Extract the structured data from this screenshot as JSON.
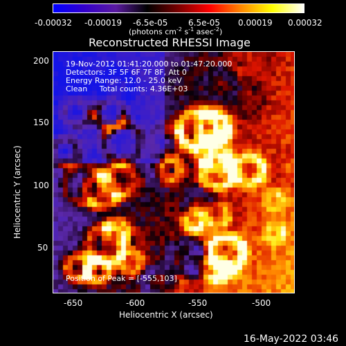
{
  "colorbar": {
    "ticks": [
      "-0.00032",
      "-0.00019",
      "-6.5e-05",
      "6.5e-05",
      "0.00019",
      "0.00032"
    ],
    "unit_label": "(photons cm",
    "unit_exp1": "-2",
    "unit_mid": " s",
    "unit_exp2": "-1",
    "unit_tail": " asec",
    "unit_exp3": "-2",
    "unit_close": ")",
    "colors": [
      "#0000ff",
      "#3300cc",
      "#5a1aa0",
      "#000000",
      "#7a0000",
      "#ff0000",
      "#ff8800",
      "#ffff00",
      "#ffffff"
    ]
  },
  "title": "Reconstructed RHESSI Image",
  "annotations": {
    "time_range": "19-Nov-2012 01:41:20.000 to 01:47:20.000",
    "detectors": "Detectors: 3F 5F 6F 7F 8F, Att 0",
    "energy": "Energy Range: 12.0 - 25.0 keV",
    "clean": "Clean     Total counts: 4.36E+03",
    "peak": "Position of Peak = [-555,103]"
  },
  "axes": {
    "xlabel": "Heliocentric X (arcsec)",
    "ylabel": "Heliocentric Y (arcsec)",
    "xticks": [
      "-650",
      "-600",
      "-550",
      "-500"
    ],
    "yticks": [
      "200",
      "150",
      "100",
      "50"
    ],
    "xrange": [
      -672,
      -478
    ],
    "yrange": [
      13,
      207
    ]
  },
  "footer_timestamp": "16-May-2022 03:46"
}
